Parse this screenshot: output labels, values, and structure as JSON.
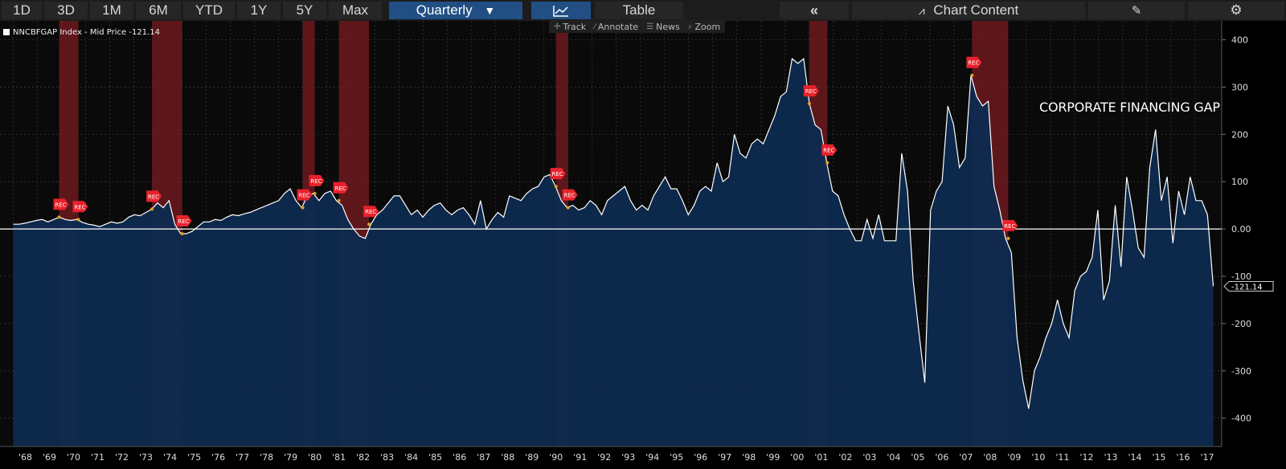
{
  "toolbar": {
    "ranges": [
      "1D",
      "3D",
      "1M",
      "6M",
      "YTD",
      "1Y",
      "5Y",
      "Max"
    ],
    "frequency": "Quarterly",
    "table_label": "Table",
    "chart_content_label": "Chart Content"
  },
  "subbar": {
    "track": "Track",
    "annotate": "Annotate",
    "news": "News",
    "zoom": "Zoom"
  },
  "legend": {
    "label": "NNCBFGAP Index - Mid Price -121.14"
  },
  "colors": {
    "fill": "#0d2a4f",
    "line": "#ffffff",
    "recession": "#7a1c22",
    "rec_marker": "#e8222c",
    "bg": "#000000",
    "dot": "#e0a020"
  },
  "chart_data": {
    "type": "area",
    "title": "",
    "annotation": "CORPORATE FINANCING GAP",
    "series": [
      {
        "values": [
          10,
          10,
          12,
          15,
          18,
          20,
          15,
          20,
          25,
          20,
          18,
          20,
          14,
          10,
          8,
          5,
          10,
          15,
          12,
          15,
          25,
          30,
          28,
          35,
          42,
          55,
          45,
          60,
          10,
          -10,
          -10,
          -5,
          5,
          15,
          15,
          20,
          18,
          25,
          30,
          28,
          32,
          35,
          40,
          45,
          50,
          55,
          60,
          75,
          85,
          60,
          45,
          70,
          75,
          60,
          75,
          80,
          60,
          50,
          20,
          0,
          -15,
          -20,
          10,
          30,
          40,
          55,
          70,
          70,
          50,
          30,
          40,
          25,
          40,
          50,
          55,
          40,
          30,
          40,
          45,
          30,
          10,
          60,
          0,
          20,
          35,
          25,
          70,
          65,
          60,
          75,
          85,
          90,
          110,
          115,
          90,
          60,
          45,
          50,
          40,
          45,
          60,
          50,
          30,
          60,
          70,
          80,
          90,
          60,
          40,
          50,
          40,
          70,
          90,
          110,
          85,
          85,
          60,
          30,
          50,
          80,
          90,
          80,
          140,
          100,
          110,
          200,
          160,
          150,
          180,
          190,
          180,
          210,
          240,
          280,
          290,
          360,
          350,
          360,
          265,
          220,
          210,
          140,
          80,
          70,
          30,
          0,
          -25,
          -25,
          20,
          -20,
          30,
          -25,
          -25,
          -25,
          160,
          80,
          -110,
          -220,
          -325,
          40,
          80,
          100,
          260,
          220,
          130,
          150,
          325,
          280,
          260,
          270,
          90,
          40,
          -20,
          -50,
          -230,
          -320,
          -380,
          -300,
          -270,
          -230,
          -200,
          -150,
          -200,
          -230,
          -130,
          -100,
          -90,
          -60,
          40,
          -150,
          -110,
          50,
          -80,
          110,
          40,
          -40,
          -60,
          130,
          210,
          60,
          110,
          -30,
          80,
          30,
          110,
          60,
          60,
          30,
          -121.14
        ]
      }
    ],
    "x_start": 1968.0,
    "x_end": 2017.75,
    "ylim": [
      -460,
      440
    ],
    "yticks": [
      -400,
      -300,
      -200,
      -100,
      0,
      100,
      200,
      300,
      400
    ],
    "ytick_labels": [
      "-400",
      "-300",
      "-200",
      "-100",
      "0.00",
      "100",
      "200",
      "300",
      "400"
    ],
    "xtick_labels": [
      "'68",
      "'69",
      "'70",
      "'71",
      "'72",
      "'73",
      "'74",
      "'75",
      "'76",
      "'77",
      "'78",
      "'79",
      "'80",
      "'81",
      "'82",
      "'83",
      "'84",
      "'85",
      "'86",
      "'87",
      "'88",
      "'89",
      "'90",
      "'91",
      "'92",
      "'93",
      "'94",
      "'95",
      "'96",
      "'97",
      "'98",
      "'99",
      "'00",
      "'01",
      "'02",
      "'03",
      "'04",
      "'05",
      "'06",
      "'07",
      "'08",
      "'09",
      "'10",
      "'11",
      "'12",
      "'13",
      "'14",
      "'15",
      "'16",
      "'17"
    ],
    "last_value_label": "-121.14",
    "recessions": [
      [
        1969.9,
        1970.7
      ],
      [
        1973.75,
        1975.0
      ],
      [
        1980.0,
        1980.5
      ],
      [
        1981.5,
        1982.75
      ],
      [
        1990.5,
        1991.0
      ],
      [
        2001.0,
        2001.75
      ],
      [
        2007.75,
        2009.25
      ]
    ],
    "rec_marker_label": "REC"
  }
}
